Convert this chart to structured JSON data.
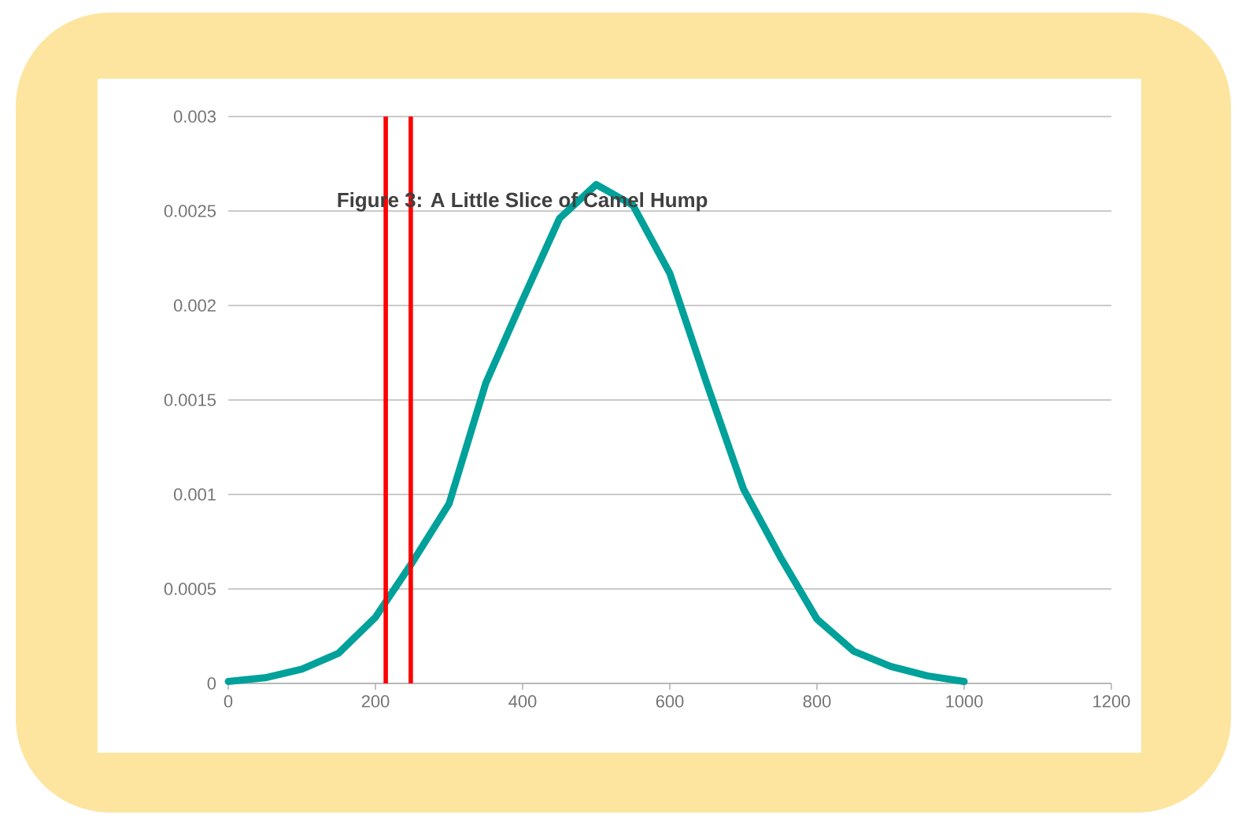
{
  "chart_data": {
    "type": "line",
    "title": "Figure 3:  A Little Slice of Camel Hump",
    "x": [
      0,
      50,
      100,
      150,
      200,
      250,
      300,
      350,
      400,
      450,
      500,
      550,
      600,
      650,
      700,
      750,
      800,
      850,
      900,
      950,
      1000
    ],
    "series": [
      {
        "color": "#00a19a",
        "values": [
          1e-05,
          3e-05,
          7.5e-05,
          0.00016,
          0.00035,
          0.00064,
          0.00095,
          0.00159,
          0.00203,
          0.00246,
          0.00264,
          0.00253,
          0.00217,
          0.00159,
          0.00103,
          0.00067,
          0.00034,
          0.00017,
          9e-05,
          4e-05,
          1e-05
        ]
      }
    ],
    "xlim": [
      0,
      1200
    ],
    "ylim": [
      0,
      0.003
    ],
    "xticks": [
      0,
      200,
      400,
      600,
      800,
      1000,
      1200
    ],
    "yticks": [
      0,
      0.0005,
      0.001,
      0.0015,
      0.002,
      0.0025,
      0.003
    ],
    "ref_lines": [
      {
        "axis": "x",
        "value": 214,
        "color": "#ff0000"
      },
      {
        "axis": "x",
        "value": 248,
        "color": "#ff0000"
      }
    ],
    "grid": "y",
    "marker": "none",
    "line_style": "solid"
  }
}
